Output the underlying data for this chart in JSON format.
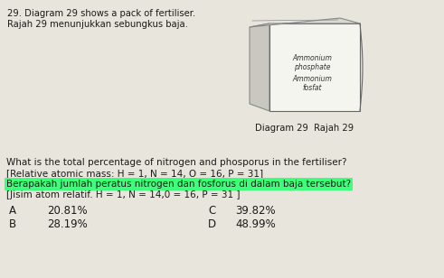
{
  "title_line1": "29. Diagram 29 shows a pack of fertiliser.",
  "title_line2": "Rajah 29 menunjukkan sebungkus baja.",
  "bag_label_line1": "Ammonium",
  "bag_label_line2": "phosphate",
  "bag_label_line3": "Ammonium",
  "bag_label_line4": "fosfat",
  "diagram_caption": "Diagram 29  Rajah 29",
  "question_line1": "What is the total percentage of nitrogen and phosporus in the fertiliser?",
  "question_line2": "[Relative atomic mass: H = 1, N = 14, O = 16, P = 31]",
  "question_line3": "Berapakah jumlah peratus nitrogen dan fosforus di dalam baja tersebut?",
  "question_line4": "[Jisim atom relatif. H = 1, N = 14,0 = 16, P = 31 ]",
  "option_A_letter": "A",
  "option_A_value": "20.81%",
  "option_B_letter": "B",
  "option_B_value": "28.19%",
  "option_C_letter": "C",
  "option_C_value": "39.82%",
  "option_D_letter": "D",
  "option_D_value": "48.99%",
  "highlight_color": "#3dff7a",
  "bg_color": "#e8e6dc",
  "text_color": "#1a1a1a",
  "font_size_title": 7.2,
  "font_size_question": 7.5,
  "font_size_options": 8.5,
  "font_size_bag": 5.5,
  "font_size_caption": 7.2
}
